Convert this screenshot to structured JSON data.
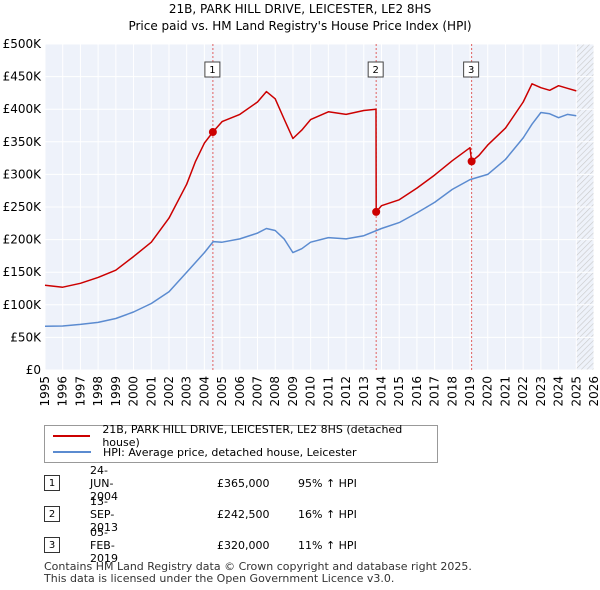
{
  "chart_data": {
    "type": "line",
    "title": "21B, PARK HILL DRIVE, LEICESTER, LE2 8HS",
    "subtitle": "Price paid vs. HM Land Registry's House Price Index (HPI)",
    "xlim": [
      1995,
      2026
    ],
    "ylim": [
      0,
      500000
    ],
    "x_ticks": [
      "1995",
      "1996",
      "1997",
      "1998",
      "1999",
      "2000",
      "2001",
      "2002",
      "2003",
      "2004",
      "2005",
      "2006",
      "2007",
      "2008",
      "2009",
      "2010",
      "2011",
      "2012",
      "2013",
      "2014",
      "2015",
      "2016",
      "2017",
      "2018",
      "2019",
      "2020",
      "2021",
      "2022",
      "2023",
      "2024",
      "2025",
      "2026"
    ],
    "y_ticks": [
      {
        "value": 0,
        "label": "£0"
      },
      {
        "value": 50000,
        "label": "£50K"
      },
      {
        "value": 100000,
        "label": "£100K"
      },
      {
        "value": 150000,
        "label": "£150K"
      },
      {
        "value": 200000,
        "label": "£200K"
      },
      {
        "value": 250000,
        "label": "£250K"
      },
      {
        "value": 300000,
        "label": "£300K"
      },
      {
        "value": 350000,
        "label": "£350K"
      },
      {
        "value": 400000,
        "label": "£400K"
      },
      {
        "value": 450000,
        "label": "£450K"
      },
      {
        "value": 500000,
        "label": "£500K"
      }
    ],
    "grid": true,
    "series": [
      {
        "name": "21B, PARK HILL DRIVE, LEICESTER, LE2 8HS (detached house)",
        "color": "#cc0000",
        "x": [
          1995.0,
          1996.0,
          1997.0,
          1998.0,
          1999.0,
          2000.0,
          2001.0,
          2002.0,
          2003.0,
          2003.5,
          2004.0,
          2004.48,
          2005.0,
          2006.0,
          2007.0,
          2007.5,
          2008.0,
          2008.5,
          2009.0,
          2009.5,
          2010.0,
          2011.0,
          2012.0,
          2013.0,
          2013.69,
          2013.7,
          2014.0,
          2015.0,
          2016.0,
          2017.0,
          2018.0,
          2019.0,
          2019.09,
          2019.5,
          2020.0,
          2021.0,
          2022.0,
          2022.5,
          2023.0,
          2023.5,
          2024.0,
          2024.5,
          2025.0
        ],
        "y": [
          130000,
          127000,
          133000,
          142000,
          153000,
          174000,
          196000,
          233000,
          285000,
          320000,
          348000,
          365000,
          381000,
          392000,
          411000,
          427000,
          416000,
          385000,
          355000,
          368000,
          384000,
          396000,
          392000,
          398000,
          400000,
          242500,
          252000,
          261000,
          279000,
          299000,
          321000,
          341000,
          320000,
          329000,
          345000,
          371000,
          411000,
          439000,
          433000,
          429000,
          436000,
          432000,
          428000
        ]
      },
      {
        "name": "HPI: Average price, detached house, Leicester",
        "color": "#5b8bd0",
        "x": [
          1995.0,
          1996.0,
          1997.0,
          1998.0,
          1999.0,
          2000.0,
          2001.0,
          2002.0,
          2003.0,
          2004.0,
          2004.5,
          2005.0,
          2006.0,
          2007.0,
          2007.5,
          2008.0,
          2008.5,
          2009.0,
          2009.5,
          2010.0,
          2011.0,
          2012.0,
          2013.0,
          2014.0,
          2015.0,
          2016.0,
          2017.0,
          2018.0,
          2019.0,
          2020.0,
          2021.0,
          2022.0,
          2022.5,
          2023.0,
          2023.5,
          2024.0,
          2024.5,
          2025.0
        ],
        "y": [
          67000,
          67500,
          70000,
          73000,
          79000,
          89000,
          102000,
          120000,
          150000,
          180000,
          197000,
          196000,
          201000,
          210000,
          217000,
          214000,
          201000,
          180000,
          186000,
          196000,
          203000,
          201000,
          206000,
          217000,
          226000,
          241000,
          257000,
          277000,
          292000,
          300000,
          323000,
          356000,
          377000,
          395000,
          393000,
          387000,
          392000,
          390000
        ]
      }
    ],
    "transactions": [
      {
        "num": "1",
        "x": 2004.48,
        "y": 365000,
        "date": "24-JUN-2004",
        "price": "£365,000",
        "hpi": "95% ↑ HPI"
      },
      {
        "num": "2",
        "x": 2013.7,
        "y": 242500,
        "date": "13-SEP-2013",
        "price": "£242,500",
        "hpi": "16% ↑ HPI"
      },
      {
        "num": "3",
        "x": 2019.09,
        "y": 320000,
        "date": "05-FEB-2019",
        "price": "£320,000",
        "hpi": "11% ↑ HPI"
      }
    ],
    "hatch_from": 2025.0,
    "legend_position": "below"
  },
  "footer": {
    "line1": "Contains HM Land Registry data © Crown copyright and database right 2025.",
    "line2": "This data is licensed under the Open Government Licence v3.0."
  }
}
